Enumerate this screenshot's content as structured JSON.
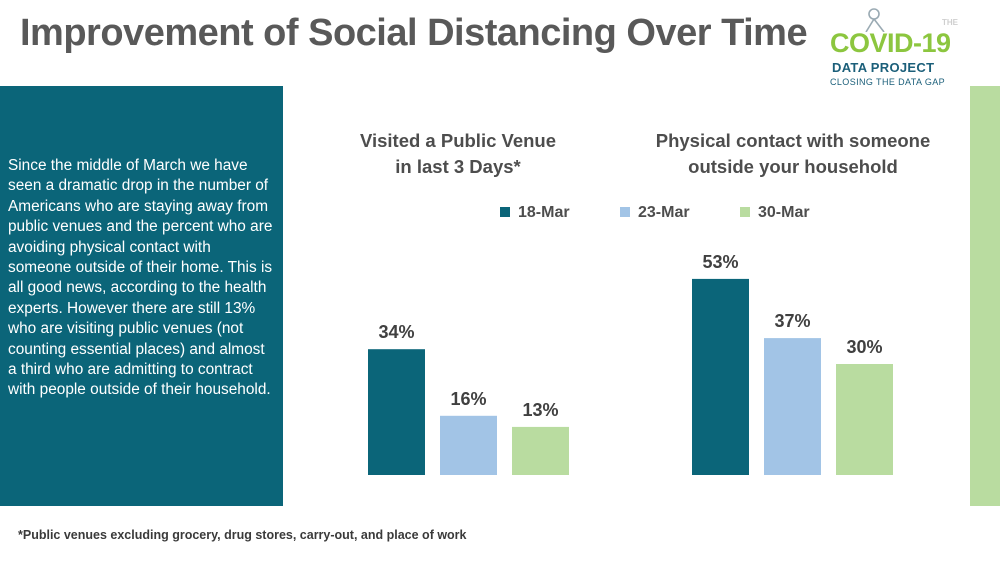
{
  "header": {
    "title": "Improvement of Social Distancing Over Time"
  },
  "logo": {
    "small": "THE",
    "main": "COVID-19",
    "sub": "DATA PROJECT",
    "tagline": "CLOSING THE DATA GAP"
  },
  "sidebar": {
    "text": "Since the middle of March we have seen a dramatic drop in the number of Americans who are staying away from public venues and the percent who are avoiding physical contact with someone outside of their home. This is all good news, according to the health experts. However there are still 13% who are visiting public venues (not counting essential places) and almost a third who are admitting to contract with people outside of their household."
  },
  "footnote": "*Public venues excluding grocery, drug stores, carry-out, and place of work",
  "colors": {
    "teal": "#0b6579",
    "blue": "#a2c4e6",
    "green": "#b9dca0"
  },
  "chart_data": [
    {
      "type": "bar",
      "title": "Visited a Public Venue in last 3 Days*",
      "title_lines": [
        "Visited a Public Venue",
        "in last 3 Days*"
      ],
      "categories": [
        "18-Mar",
        "23-Mar",
        "30-Mar"
      ],
      "values": [
        34,
        16,
        13
      ],
      "labels": [
        "34%",
        "16%",
        "13%"
      ],
      "ylim": [
        0,
        60
      ],
      "grid": false
    },
    {
      "type": "bar",
      "title": "Physical contact with someone outside your household",
      "title_lines": [
        "Physical contact with someone",
        "outside your household"
      ],
      "categories": [
        "18-Mar",
        "23-Mar",
        "30-Mar"
      ],
      "values": [
        53,
        37,
        30
      ],
      "labels": [
        "53%",
        "37%",
        "30%"
      ],
      "ylim": [
        0,
        60
      ],
      "grid": false
    }
  ],
  "legend": [
    {
      "label": "18-Mar",
      "color": "#0b6579"
    },
    {
      "label": "23-Mar",
      "color": "#a2c4e6"
    },
    {
      "label": "30-Mar",
      "color": "#b9dca0"
    }
  ]
}
